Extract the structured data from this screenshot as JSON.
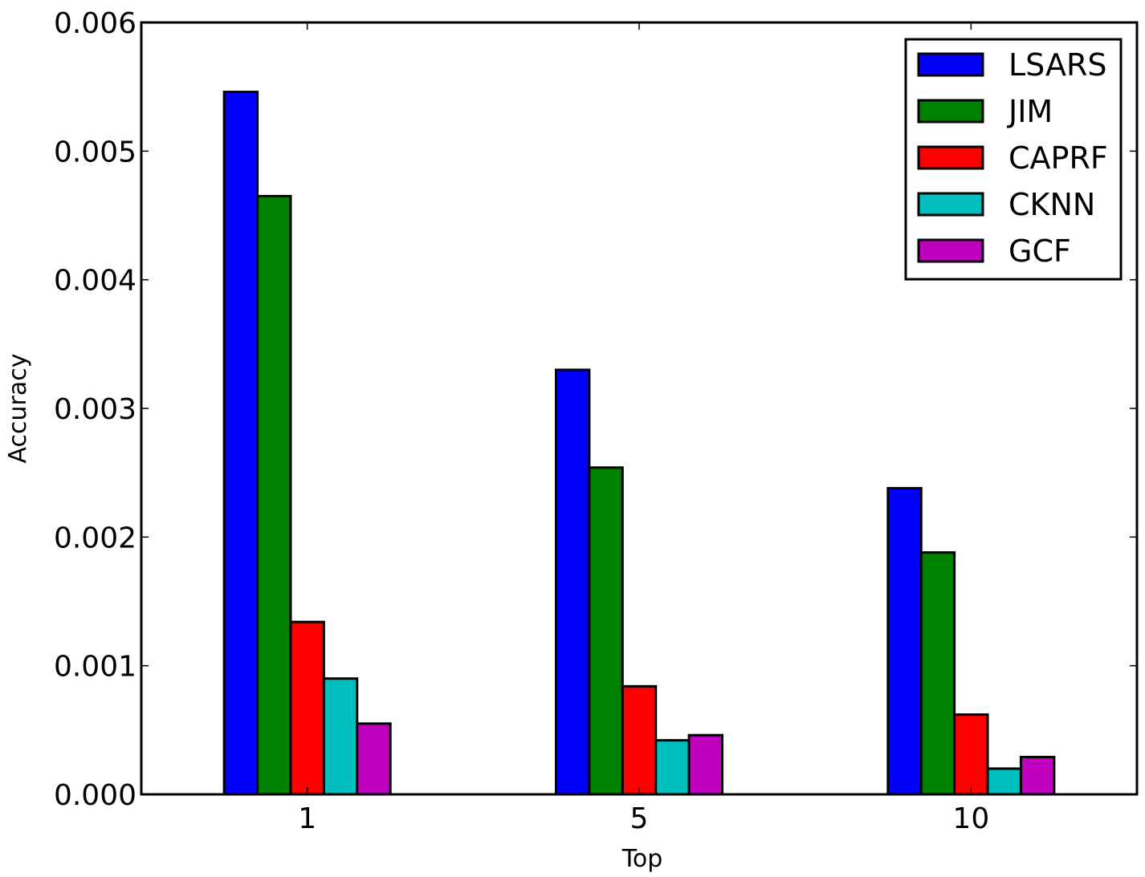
{
  "chart_data": {
    "type": "bar",
    "title": "",
    "xlabel": "Top",
    "ylabel": "Accuracy",
    "categories": [
      "1",
      "5",
      "10"
    ],
    "ylim": [
      0,
      0.006
    ],
    "yticks": [
      "0.000",
      "0.001",
      "0.002",
      "0.003",
      "0.004",
      "0.005",
      "0.006"
    ],
    "legend_position": "top-right",
    "grid": false,
    "series": [
      {
        "name": "LSARS",
        "color": "#0000ff",
        "values": [
          0.00546,
          0.0033,
          0.00238
        ]
      },
      {
        "name": "JIM",
        "color": "#008000",
        "values": [
          0.00465,
          0.00254,
          0.00188
        ]
      },
      {
        "name": "CAPRF",
        "color": "#ff0000",
        "values": [
          0.00134,
          0.00084,
          0.00062
        ]
      },
      {
        "name": "CKNN",
        "color": "#00bfbf",
        "values": [
          0.0009,
          0.00042,
          0.0002
        ]
      },
      {
        "name": "GCF",
        "color": "#bf00bf",
        "values": [
          0.00055,
          0.00046,
          0.00029
        ]
      }
    ]
  }
}
